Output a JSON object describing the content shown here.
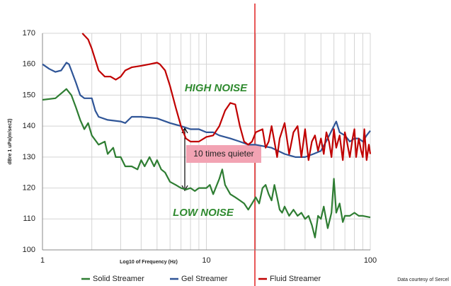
{
  "chart_data": {
    "type": "line",
    "x_label": "Log10 of Frequency (Hz)",
    "y_label": "dBre 1 uPa(m/sec2)",
    "xlim": [
      1,
      100
    ],
    "xticks": [
      1,
      10,
      100
    ],
    "xscale": "log",
    "ylim": [
      100,
      170
    ],
    "yticks": [
      100,
      110,
      120,
      130,
      140,
      150,
      160,
      170
    ],
    "grid": true,
    "legend": "bottom",
    "annotations": [
      "HIGH NOISE",
      "LOW NOISE",
      "10 times quieter"
    ],
    "credit": "Data courtesy of Sercel",
    "series": [
      {
        "name": "Solid Streamer",
        "color": "#2e7d32",
        "x": [
          1,
          1.2,
          1.4,
          1.5,
          1.6,
          1.7,
          1.8,
          1.9,
          2.0,
          2.2,
          2.4,
          2.5,
          2.7,
          2.8,
          3.0,
          3.2,
          3.5,
          3.8,
          4.0,
          4.2,
          4.5,
          4.8,
          5.0,
          5.3,
          5.6,
          6,
          6.5,
          7,
          7.5,
          8,
          8.5,
          9,
          10,
          10.5,
          11,
          12,
          12.5,
          13,
          14,
          15,
          16,
          17,
          18,
          19,
          20,
          21,
          22,
          23,
          24,
          25,
          26,
          27,
          28,
          29,
          30,
          32,
          34,
          36,
          38,
          40,
          42,
          44,
          46,
          48,
          50,
          52,
          55,
          58,
          60,
          62,
          65,
          68,
          70,
          75,
          80,
          85,
          90,
          100
        ],
        "values": [
          148.5,
          149,
          152,
          150,
          146,
          142,
          139,
          141,
          137,
          134,
          135,
          131,
          133,
          130,
          130,
          127,
          127,
          126,
          129,
          127,
          130,
          127,
          129,
          126,
          125,
          122,
          121,
          120,
          119.5,
          120,
          119,
          120,
          120,
          121,
          118,
          123,
          126,
          121,
          118,
          117,
          116,
          115,
          113,
          115,
          117,
          115,
          120,
          121,
          118,
          116,
          121,
          117,
          113,
          112,
          114,
          111,
          113,
          111,
          112,
          110,
          111,
          108,
          104,
          111,
          110,
          114,
          107,
          112,
          123,
          112,
          115,
          109,
          111,
          111,
          112,
          111,
          111,
          110.5
        ]
      },
      {
        "name": "Gel Streamer",
        "color": "#2f5597",
        "x": [
          1,
          1.1,
          1.2,
          1.3,
          1.4,
          1.45,
          1.5,
          1.6,
          1.7,
          1.8,
          1.9,
          2.0,
          2.1,
          2.2,
          2.5,
          3,
          3.2,
          3.5,
          4,
          5,
          6,
          7,
          8,
          9,
          10,
          11,
          12,
          14,
          16,
          18,
          20,
          25,
          30,
          35,
          40,
          45,
          50,
          55,
          60,
          62,
          65,
          70,
          75,
          80,
          85,
          90,
          95,
          100
        ],
        "values": [
          160,
          158.5,
          157.5,
          158,
          160.5,
          160,
          158,
          154,
          150,
          149,
          149,
          149,
          145,
          143,
          142,
          141.5,
          141,
          143,
          143,
          142.5,
          141,
          140,
          139,
          139,
          138,
          138,
          137,
          136,
          135,
          134,
          134,
          133,
          131,
          130,
          130,
          131,
          132,
          136,
          140,
          141.5,
          138,
          137,
          135,
          136,
          136,
          135,
          137,
          138.5
        ]
      },
      {
        "name": "Fluid Streamer",
        "color": "#c00000",
        "x": [
          1.75,
          1.9,
          2.0,
          2.2,
          2.4,
          2.6,
          2.8,
          3.0,
          3.2,
          3.5,
          4,
          4.5,
          5,
          5.2,
          5.6,
          6,
          6.5,
          7,
          7.5,
          8,
          9,
          10,
          11,
          12,
          13,
          14,
          15,
          16,
          17,
          18,
          19,
          20,
          22,
          23,
          24,
          25,
          26,
          27,
          28,
          30,
          32,
          34,
          36,
          38,
          40,
          42,
          44,
          46,
          48,
          50,
          52,
          54,
          56,
          58,
          60,
          62,
          65,
          68,
          70,
          72,
          75,
          78,
          80,
          82,
          85,
          88,
          90,
          92,
          95,
          98,
          100
        ],
        "values": [
          170,
          168,
          165,
          158,
          156,
          156,
          155,
          156,
          158,
          159,
          159.5,
          160,
          160.5,
          160,
          158,
          153,
          146,
          140,
          136,
          135,
          135,
          136.5,
          137,
          140,
          145,
          147.5,
          147,
          140,
          135,
          134,
          135,
          138,
          139,
          133,
          135,
          140,
          135,
          130,
          136,
          141,
          131,
          138,
          140,
          130,
          139,
          129,
          135,
          137,
          132,
          136,
          131,
          138,
          135,
          130,
          139,
          133,
          137,
          129,
          138,
          135,
          130,
          136,
          139,
          130,
          136,
          132,
          130,
          139,
          129,
          134,
          131
        ]
      }
    ]
  }
}
